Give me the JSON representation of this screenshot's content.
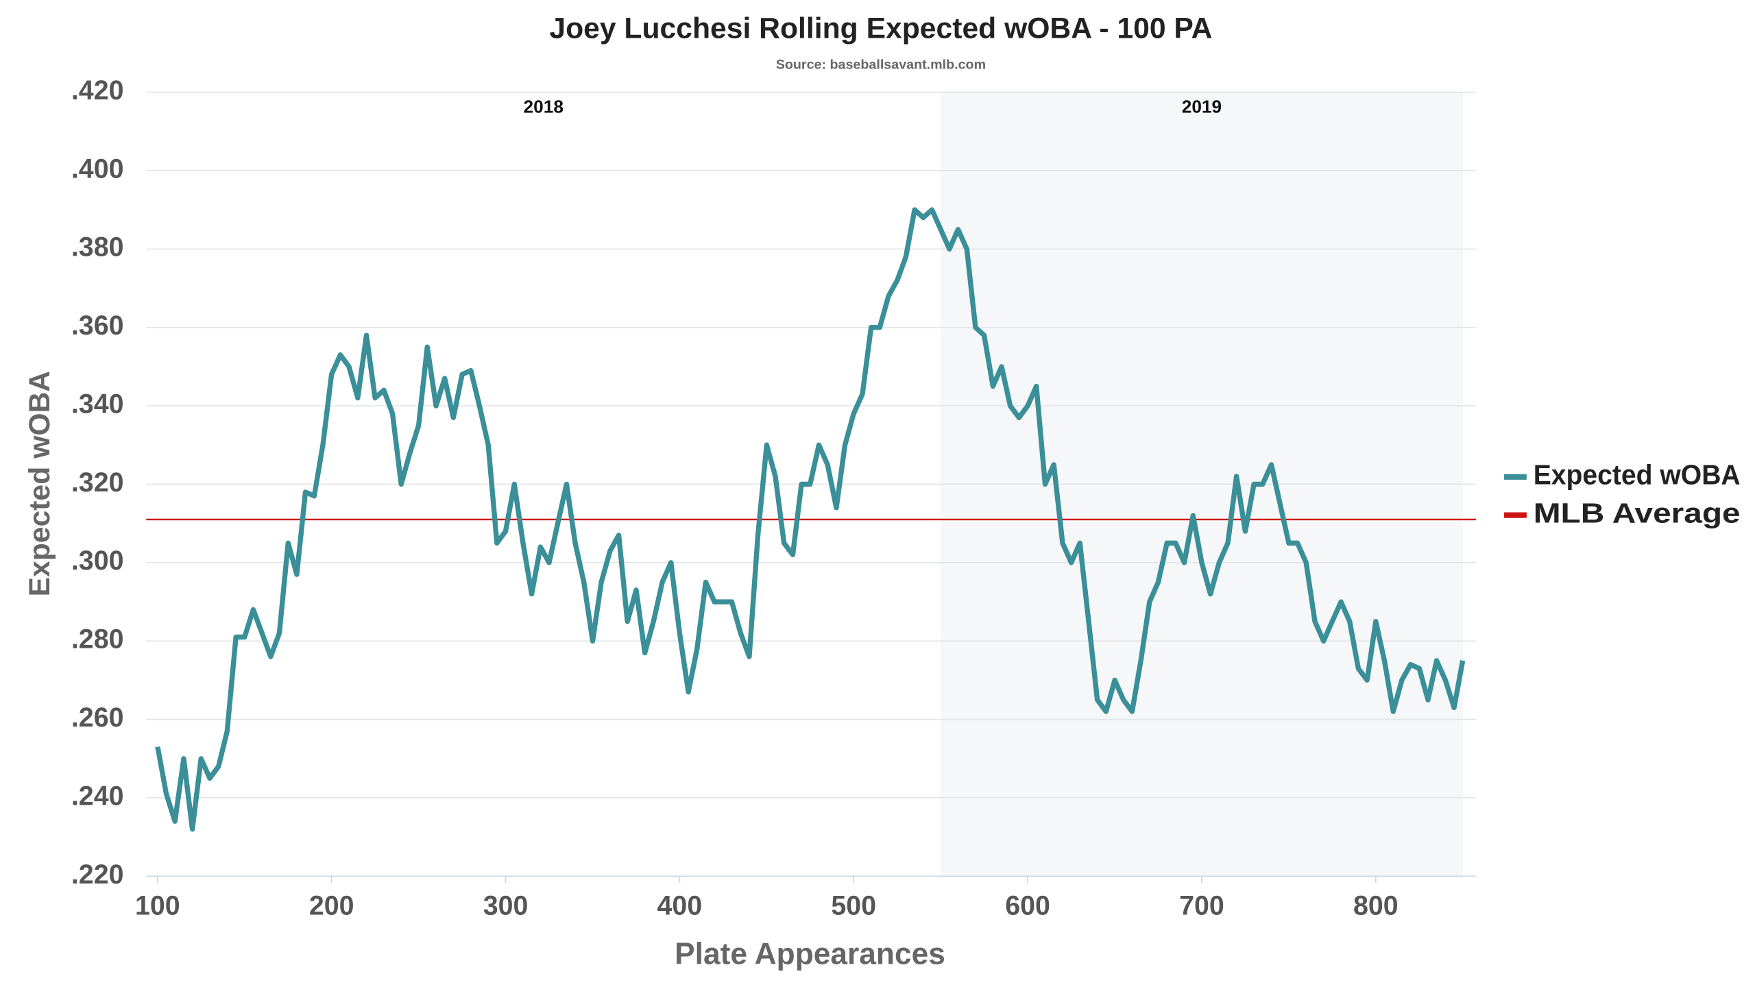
{
  "chart_data": {
    "type": "line",
    "title": "Joey Lucchesi Rolling Expected wOBA - 100 PA",
    "subtitle": "Source: baseballsavant.mlb.com",
    "x_label": "Plate Appearances",
    "y_label": "Expected wOBA",
    "xlim": [
      93.5,
      857.6
    ],
    "ylim": [
      0.22,
      0.42
    ],
    "xticks": [
      100,
      200,
      300,
      400,
      500,
      600,
      700,
      800
    ],
    "yticks": [
      {
        "value": 0.22,
        "label": ".220"
      },
      {
        "value": 0.24,
        "label": ".240"
      },
      {
        "value": 0.26,
        "label": ".260"
      },
      {
        "value": 0.28,
        "label": ".280"
      },
      {
        "value": 0.3,
        "label": ".300"
      },
      {
        "value": 0.32,
        "label": ".320"
      },
      {
        "value": 0.34,
        "label": ".340"
      },
      {
        "value": 0.36,
        "label": ".360"
      },
      {
        "value": 0.38,
        "label": ".380"
      },
      {
        "value": 0.4,
        "label": ".400"
      },
      {
        "value": 0.42,
        "label": ".420"
      }
    ],
    "grid": true,
    "legend": "right",
    "regions": [
      {
        "label": "2018",
        "start": 93.5,
        "end": 550,
        "shaded": false
      },
      {
        "label": "2019",
        "start": 550,
        "end": 850,
        "shaded": true
      }
    ],
    "hlines": [
      {
        "name": "MLB Average",
        "value": 0.311,
        "color": "#cc1111"
      }
    ],
    "x": [
      100,
      105,
      110,
      115,
      120,
      125,
      130,
      135,
      140,
      145,
      150,
      155,
      160,
      165,
      170,
      175,
      180,
      185,
      190,
      195,
      200,
      205,
      210,
      215,
      220,
      225,
      230,
      235,
      240,
      245,
      250,
      255,
      260,
      265,
      270,
      275,
      280,
      285,
      290,
      295,
      300,
      305,
      310,
      315,
      320,
      325,
      330,
      335,
      340,
      345,
      350,
      355,
      360,
      365,
      370,
      375,
      380,
      385,
      390,
      395,
      400,
      405,
      410,
      415,
      420,
      425,
      430,
      435,
      440,
      445,
      450,
      455,
      460,
      465,
      470,
      475,
      480,
      485,
      490,
      495,
      500,
      505,
      510,
      515,
      520,
      525,
      530,
      535,
      540,
      545,
      550,
      555,
      560,
      565,
      570,
      575,
      580,
      585,
      590,
      595,
      600,
      605,
      610,
      615,
      620,
      625,
      630,
      635,
      640,
      645,
      650,
      655,
      660,
      665,
      670,
      675,
      680,
      685,
      690,
      695,
      700,
      705,
      710,
      715,
      720,
      725,
      730,
      735,
      740,
      745,
      750,
      755,
      760,
      765,
      770,
      775,
      780,
      785,
      790,
      795,
      800,
      805,
      810,
      815,
      820,
      825,
      830,
      835,
      840,
      845,
      850
    ],
    "series": [
      {
        "name": "Expected wOBA",
        "color": "#3a8f98",
        "values": [
          0.253,
          0.241,
          0.234,
          0.25,
          0.232,
          0.25,
          0.245,
          0.248,
          0.257,
          0.281,
          0.281,
          0.288,
          0.282,
          0.276,
          0.282,
          0.305,
          0.297,
          0.318,
          0.317,
          0.33,
          0.348,
          0.353,
          0.35,
          0.342,
          0.358,
          0.342,
          0.344,
          0.338,
          0.32,
          0.328,
          0.335,
          0.355,
          0.34,
          0.347,
          0.337,
          0.348,
          0.349,
          0.34,
          0.33,
          0.305,
          0.308,
          0.32,
          0.305,
          0.292,
          0.304,
          0.3,
          0.31,
          0.32,
          0.305,
          0.295,
          0.28,
          0.295,
          0.303,
          0.307,
          0.285,
          0.293,
          0.277,
          0.285,
          0.295,
          0.3,
          0.282,
          0.267,
          0.278,
          0.295,
          0.29,
          0.29,
          0.29,
          0.282,
          0.276,
          0.307,
          0.33,
          0.322,
          0.305,
          0.302,
          0.32,
          0.32,
          0.33,
          0.325,
          0.314,
          0.33,
          0.338,
          0.343,
          0.36,
          0.36,
          0.368,
          0.372,
          0.378,
          0.39,
          0.388,
          0.39,
          0.385,
          0.38,
          0.385,
          0.38,
          0.36,
          0.358,
          0.345,
          0.35,
          0.34,
          0.337,
          0.34,
          0.345,
          0.32,
          0.325,
          0.305,
          0.3,
          0.305,
          0.285,
          0.265,
          0.262,
          0.27,
          0.265,
          0.262,
          0.275,
          0.29,
          0.295,
          0.305,
          0.305,
          0.3,
          0.312,
          0.3,
          0.292,
          0.3,
          0.305,
          0.322,
          0.308,
          0.32,
          0.32,
          0.325,
          0.315,
          0.305,
          0.305,
          0.3,
          0.285,
          0.28,
          0.285,
          0.29,
          0.285,
          0.273,
          0.27,
          0.285,
          0.275,
          0.262,
          0.27,
          0.274,
          0.273,
          0.265,
          0.275,
          0.27,
          0.263,
          0.275
        ]
      }
    ]
  }
}
